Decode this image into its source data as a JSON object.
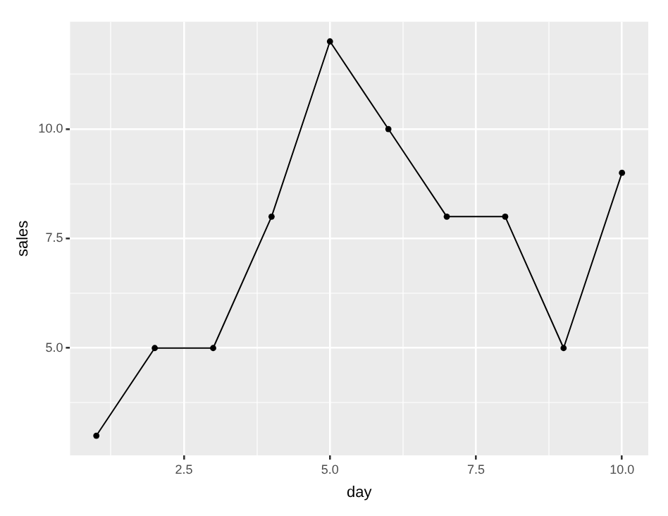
{
  "chart_data": {
    "type": "line",
    "xlabel": "day",
    "ylabel": "sales",
    "x": [
      1,
      2,
      3,
      4,
      5,
      6,
      7,
      8,
      9,
      10
    ],
    "series": [
      {
        "color": "#000000",
        "values": [
          3,
          5,
          5,
          8,
          12,
          10,
          8,
          8,
          5,
          9
        ]
      }
    ],
    "xlim": [
      0.55,
      10.45
    ],
    "ylim": [
      2.55,
      12.45
    ],
    "xticks": [
      {
        "value": 1.25,
        "label": null
      },
      {
        "value": 2.5,
        "label": "2.5"
      },
      {
        "value": 3.75,
        "label": null
      },
      {
        "value": 5,
        "label": "5.0"
      },
      {
        "value": 6.25,
        "label": null
      },
      {
        "value": 7.5,
        "label": "7.5"
      },
      {
        "value": 8.75,
        "label": null
      },
      {
        "value": 10,
        "label": "10.0"
      }
    ],
    "yticks": [
      {
        "value": 3.75,
        "label": null
      },
      {
        "value": 5,
        "label": "5.0"
      },
      {
        "value": 6.25,
        "label": null
      },
      {
        "value": 7.5,
        "label": "7.5"
      },
      {
        "value": 8.75,
        "label": null
      },
      {
        "value": 10,
        "label": "10.0"
      },
      {
        "value": 11.25,
        "label": null
      }
    ],
    "grid": true,
    "legend": false,
    "marker": "circle",
    "line_style": "solid"
  }
}
